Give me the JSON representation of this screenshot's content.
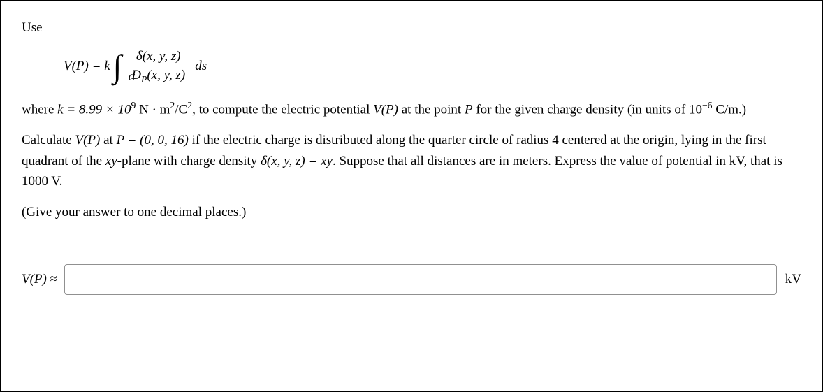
{
  "intro": {
    "use": "Use"
  },
  "formula": {
    "lhs": "V(P) = k",
    "int_sub": "C",
    "numerator": "δ(x, y, z)",
    "denom_base": "D",
    "denom_sub": "P",
    "denom_args": "(x, y, z)",
    "trail": "ds"
  },
  "body": {
    "where_pre": "where ",
    "k_eq": "k = 8.99 × 10",
    "k_exp": "9",
    "k_units_pre": " N · m",
    "k_units_sup2a": "2",
    "k_units_mid": "/C",
    "k_units_sup2b": "2",
    "where_post": ", to compute the electric potential ",
    "vp": "V(P)",
    "where_tail": " at the point ",
    "P": "P",
    "where_end": " for the given charge density (in units of 10",
    "neg6": "−6",
    "units_cm": " C/m.)",
    "calc_pre": "Calculate ",
    "calc_at": " at ",
    "P_eq": "P = (0, 0, 16)",
    "calc_mid": " if the electric charge is distributed along the quarter circle of radius 4 centered at the origin, lying in the first quadrant of the ",
    "xy": "xy",
    "calc_plane": "-plane with charge density ",
    "delta": "δ(x, y, z) = xy",
    "calc_tail": ". Suppose that all distances are in meters. Express the value of potential in kV, that is 1000 V.",
    "hint": "(Give your answer to one decimal places.)"
  },
  "answer": {
    "label_v": "V(P) ",
    "approx": "≈",
    "value": "",
    "unit": "kV"
  }
}
